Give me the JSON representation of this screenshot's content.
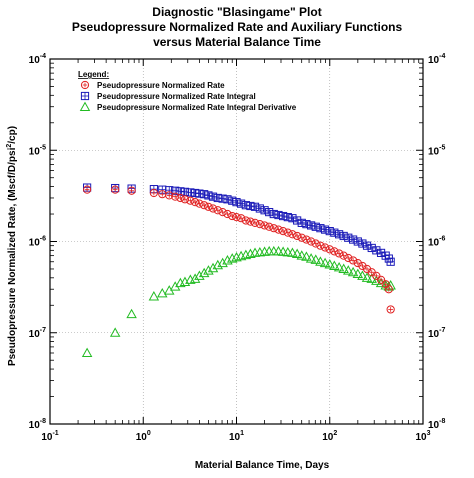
{
  "chart_data": {
    "type": "scatter",
    "title_lines": [
      "Diagnostic \"Blasingame\" Plot",
      "Pseudopressure Normalized Rate and Auxiliary Functions",
      "versus Material Balance Time"
    ],
    "xlabel": "Material Balance Time, Days",
    "ylabel_parts": [
      "Pseudopressure Normalized Rate, (Mscf/D/psi",
      "2",
      "/cp)"
    ],
    "xscale": "log",
    "yscale": "log",
    "xlim": [
      0.1,
      1000
    ],
    "ylim": [
      1e-08,
      0.0001
    ],
    "x_tick_labels": [
      {
        "base": "10",
        "exp": "-1"
      },
      {
        "base": "10",
        "exp": "0"
      },
      {
        "base": "10",
        "exp": "1"
      },
      {
        "base": "10",
        "exp": "2"
      },
      {
        "base": "10",
        "exp": "3"
      }
    ],
    "y_tick_labels": [
      {
        "base": "10",
        "exp": "-8"
      },
      {
        "base": "10",
        "exp": "-7"
      },
      {
        "base": "10",
        "exp": "-6"
      },
      {
        "base": "10",
        "exp": "-5"
      },
      {
        "base": "10",
        "exp": "-4"
      }
    ],
    "grid": true,
    "legend": {
      "title": "Legend:",
      "placement": "top-left"
    },
    "series": [
      {
        "name": "Pseudopressure Normalized Rate",
        "marker": "circle",
        "color": "#e02020",
        "x": [
          0.25,
          0.5,
          0.75,
          1.3,
          1.6,
          1.9,
          2.2,
          2.5,
          2.8,
          3.2,
          3.6,
          4.0,
          4.5,
          5.0,
          5.6,
          6.3,
          7.1,
          8.0,
          9.0,
          10.0,
          11.2,
          12.6,
          14.1,
          15.8,
          17.8,
          20.0,
          22.4,
          25.1,
          28.2,
          31.6,
          35.5,
          39.8,
          44.7,
          50.1,
          56.2,
          63.1,
          70.8,
          79.4,
          89.1,
          100,
          112,
          126,
          141,
          158,
          178,
          200,
          224,
          251,
          282,
          316,
          355,
          398,
          430,
          450
        ],
        "y": [
          3.7e-06,
          3.7e-06,
          3.6e-06,
          3.4e-06,
          3.3e-06,
          3.2e-06,
          3.1e-06,
          3e-06,
          2.9e-06,
          2.8e-06,
          2.7e-06,
          2.6e-06,
          2.5e-06,
          2.4e-06,
          2.3e-06,
          2.2e-06,
          2.1e-06,
          2e-06,
          1.9e-06,
          1.85e-06,
          1.8e-06,
          1.7e-06,
          1.65e-06,
          1.6e-06,
          1.55e-06,
          1.5e-06,
          1.45e-06,
          1.4e-06,
          1.35e-06,
          1.3e-06,
          1.25e-06,
          1.2e-06,
          1.15e-06,
          1.1e-06,
          1.05e-06,
          1e-06,
          9.5e-07,
          9e-07,
          8.6e-07,
          8.2e-07,
          7.8e-07,
          7.4e-07,
          7e-07,
          6.6e-07,
          6.2e-07,
          5.8e-07,
          5.4e-07,
          5e-07,
          4.6e-07,
          4.2e-07,
          3.8e-07,
          3.4e-07,
          3e-07,
          1.8e-07
        ]
      },
      {
        "name": "Pseudopressure Normalized Rate Integral",
        "marker": "square",
        "color": "#1a1ab8",
        "x": [
          0.25,
          0.5,
          0.75,
          1.3,
          1.6,
          1.9,
          2.2,
          2.5,
          2.8,
          3.2,
          3.6,
          4.0,
          4.5,
          5.0,
          5.6,
          6.3,
          7.1,
          8.0,
          9.0,
          10.0,
          11.2,
          12.6,
          14.1,
          15.8,
          17.8,
          20.0,
          22.4,
          25.1,
          28.2,
          31.6,
          35.5,
          39.8,
          44.7,
          50.1,
          56.2,
          63.1,
          70.8,
          79.4,
          89.1,
          100,
          112,
          126,
          141,
          158,
          178,
          200,
          224,
          251,
          282,
          316,
          355,
          398,
          430,
          450
        ],
        "y": [
          3.9e-06,
          3.85e-06,
          3.8e-06,
          3.75e-06,
          3.7e-06,
          3.65e-06,
          3.6e-06,
          3.55e-06,
          3.5e-06,
          3.45e-06,
          3.4e-06,
          3.35e-06,
          3.3e-06,
          3.2e-06,
          3.1e-06,
          3e-06,
          2.95e-06,
          2.9e-06,
          2.8e-06,
          2.7e-06,
          2.6e-06,
          2.5e-06,
          2.45e-06,
          2.4e-06,
          2.3e-06,
          2.2e-06,
          2.1e-06,
          2e-06,
          1.95e-06,
          1.9e-06,
          1.85e-06,
          1.8e-06,
          1.7e-06,
          1.6e-06,
          1.55e-06,
          1.5e-06,
          1.45e-06,
          1.4e-06,
          1.35e-06,
          1.3e-06,
          1.25e-06,
          1.2e-06,
          1.15e-06,
          1.1e-06,
          1.05e-06,
          1e-06,
          9.5e-07,
          9e-07,
          8.5e-07,
          8e-07,
          7.5e-07,
          7e-07,
          6.5e-07,
          6e-07
        ]
      },
      {
        "name": "Pseudopressure Normalized Rate Integral Derivative",
        "marker": "triangle",
        "color": "#22bb22",
        "x": [
          0.25,
          0.5,
          0.75,
          1.3,
          1.6,
          1.9,
          2.2,
          2.5,
          2.8,
          3.2,
          3.6,
          4.0,
          4.5,
          5.0,
          5.6,
          6.3,
          7.1,
          8.0,
          9.0,
          10.0,
          11.2,
          12.6,
          14.1,
          15.8,
          17.8,
          20.0,
          22.4,
          25.1,
          28.2,
          31.6,
          35.5,
          39.8,
          44.7,
          50.1,
          56.2,
          63.1,
          70.8,
          79.4,
          89.1,
          100,
          112,
          126,
          141,
          158,
          178,
          200,
          224,
          251,
          282,
          316,
          355,
          398,
          430,
          450
        ],
        "y": [
          6e-08,
          1e-07,
          1.6e-07,
          2.5e-07,
          2.7e-07,
          2.9e-07,
          3.2e-07,
          3.5e-07,
          3.6e-07,
          3.8e-07,
          3.9e-07,
          4.2e-07,
          4.5e-07,
          4.8e-07,
          5.1e-07,
          5.5e-07,
          5.8e-07,
          6.2e-07,
          6.5e-07,
          6.7e-07,
          6.9e-07,
          7.1e-07,
          7.3e-07,
          7.5e-07,
          7.6e-07,
          7.7e-07,
          7.8e-07,
          7.8e-07,
          7.8e-07,
          7.7e-07,
          7.6e-07,
          7.5e-07,
          7.3e-07,
          7e-07,
          6.8e-07,
          6.5e-07,
          6.3e-07,
          6e-07,
          5.8e-07,
          5.6e-07,
          5.4e-07,
          5.2e-07,
          5e-07,
          4.8e-07,
          4.6e-07,
          4.4e-07,
          4.2e-07,
          4e-07,
          3.9e-07,
          3.7e-07,
          3.5e-07,
          3.3e-07,
          3.2e-07,
          3.3e-07
        ]
      }
    ]
  }
}
